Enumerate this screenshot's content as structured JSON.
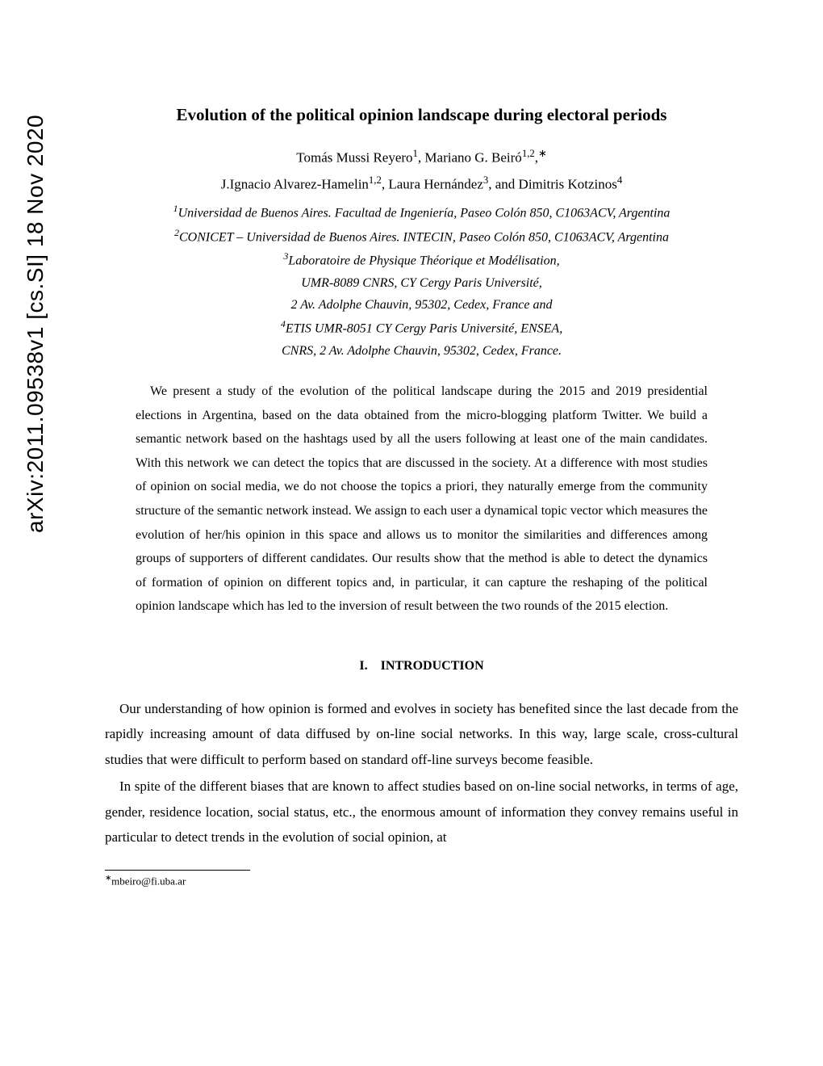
{
  "arxiv_stamp": "arXiv:2011.09538v1  [cs.SI]  18 Nov 2020",
  "title": "Evolution of the political opinion landscape during electoral periods",
  "authors_line1_html": "Tomás Mussi Reyero<sup>1</sup>, Mariano G. Beiró<sup>1,2</sup>,<sup>∗</sup>",
  "authors_line2_html": "J.Ignacio Alvarez-Hamelin<sup>1,2</sup>, Laura Hernández<sup>3</sup>, and Dimitris Kotzinos<sup>4</sup>",
  "affiliations_html": "<sup>1</sup>Universidad de Buenos Aires. Facultad de Ingeniería, Paseo Colón 850, C1063ACV, Argentina<br><sup>2</sup>CONICET – Universidad de Buenos Aires. INTECIN, Paseo Colón 850, C1063ACV, Argentina<br><sup>3</sup>Laboratoire de Physique Théorique et Modélisation,<br>UMR-8089 CNRS, CY Cergy Paris Université,<br>2 Av. Adolphe Chauvin, 95302, Cedex, France and<br><sup>4</sup>ETIS UMR-8051 CY Cergy Paris Université, ENSEA,<br>CNRS, 2 Av. Adolphe Chauvin, 95302, Cedex, France.",
  "abstract": "We present a study of the evolution of the political landscape during the 2015 and 2019 presidential elections in Argentina, based on the data obtained from the micro-blogging platform Twitter. We build a semantic network based on the hashtags used by all the users following at least one of the main candidates. With this network we can detect the topics that are discussed in the society. At a difference with most studies of opinion on social media, we do not choose the topics a priori, they naturally emerge from the community structure of the semantic network instead. We assign to each user a dynamical topic vector which measures the evolution of her/his opinion in this space and allows us to monitor the similarities and differences among groups of supporters of different candidates. Our results show that the method is able to detect the dynamics of formation of opinion on different topics and, in particular, it can capture the reshaping of the political opinion landscape which has led to the inversion of result between the two rounds of the 2015 election.",
  "section_heading": "I. INTRODUCTION",
  "intro_p1": "Our understanding of how opinion is formed and evolves in society has benefited since the last decade from the rapidly increasing amount of data diffused by on-line social networks. In this way, large scale, cross-cultural studies that were difficult to perform based on standard off-line surveys become feasible.",
  "intro_p2": "In spite of the different biases that are known to affect studies based on on-line social networks, in terms of age, gender, residence location, social status, etc., the enormous amount of information they convey remains useful in particular to detect trends in the evolution of social opinion, at",
  "footnote_html": "<sup>∗</sup>mbeiro@fi.uba.ar"
}
